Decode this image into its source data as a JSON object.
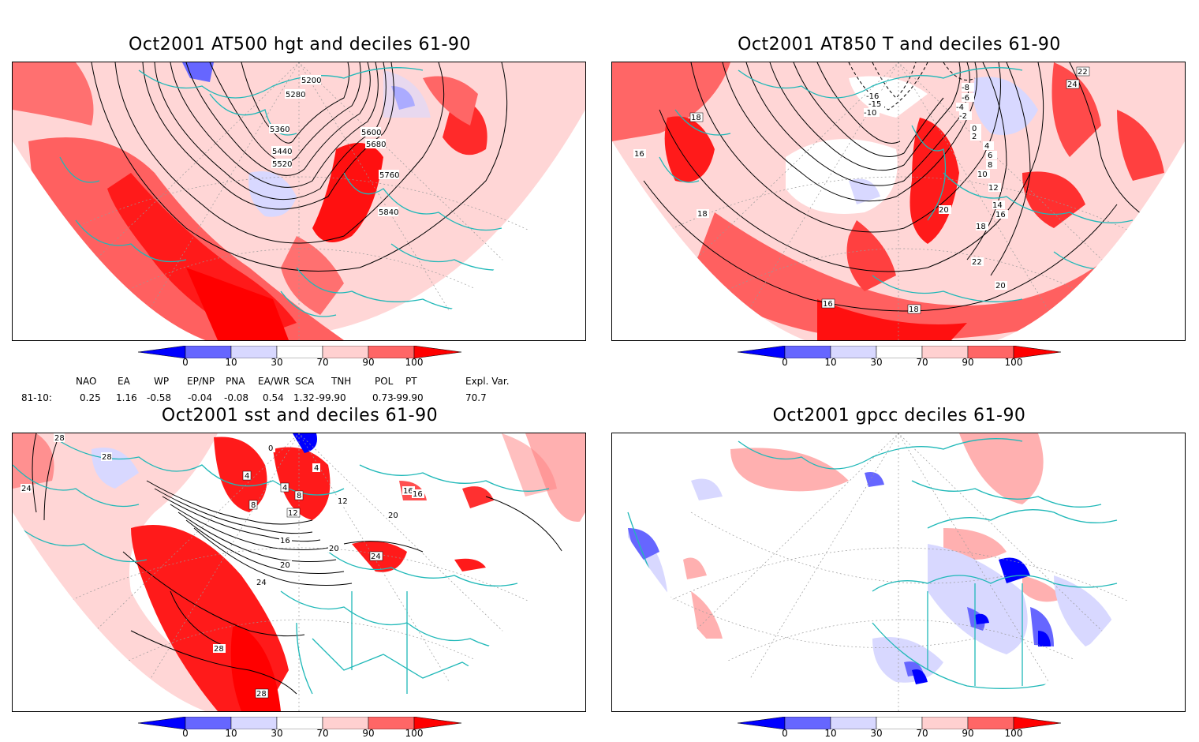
{
  "panels": [
    {
      "title": "Oct2001 AT500 hgt and deciles 61-90",
      "contour_labels": [
        "5200",
        "5280",
        "5360",
        "5440",
        "5520",
        "5600",
        "5680",
        "5760",
        "5840"
      ]
    },
    {
      "title": "Oct2001 AT850 T and deciles 61-90",
      "contour_labels": [
        "-16",
        "-15",
        "-10",
        "-8",
        "-6",
        "-4",
        "-2",
        "0",
        "2",
        "4",
        "6",
        "8",
        "10",
        "12",
        "14",
        "16",
        "18",
        "20",
        "22",
        "24",
        "18",
        "16",
        "18",
        "16",
        "22",
        "20",
        "18"
      ]
    },
    {
      "title": "Oct2001 sst and deciles 61-90",
      "contour_labels": [
        "28",
        "28",
        "24",
        "0",
        "4",
        "4",
        "4",
        "8",
        "8",
        "12",
        "12",
        "16",
        "20",
        "24",
        "16",
        "16",
        "20",
        "24",
        "20",
        "28",
        "28"
      ]
    },
    {
      "title": "Oct2001 gpcc deciles 61-90",
      "contour_labels": []
    }
  ],
  "colorbar": {
    "labels": [
      "0",
      "10",
      "30",
      "70",
      "90",
      "100"
    ],
    "colors": [
      "#0000ff",
      "#6666ff",
      "#d8d8ff",
      "#ffffff",
      "#ffd0d0",
      "#ff6666",
      "#ff0000"
    ]
  },
  "indices": {
    "headers": [
      "NAO",
      "EA",
      "WP",
      "EP/NP",
      "PNA",
      "EA/WR",
      "SCA",
      "TNH",
      "POL",
      "PT",
      "Expl. Var."
    ],
    "row_label": "81-10:",
    "values": [
      "0.25",
      "1.16",
      "-0.58",
      "-0.04",
      "-0.08",
      "0.54",
      "1.32",
      "-99.90",
      "0.73",
      "-99.90",
      "70.7"
    ]
  }
}
